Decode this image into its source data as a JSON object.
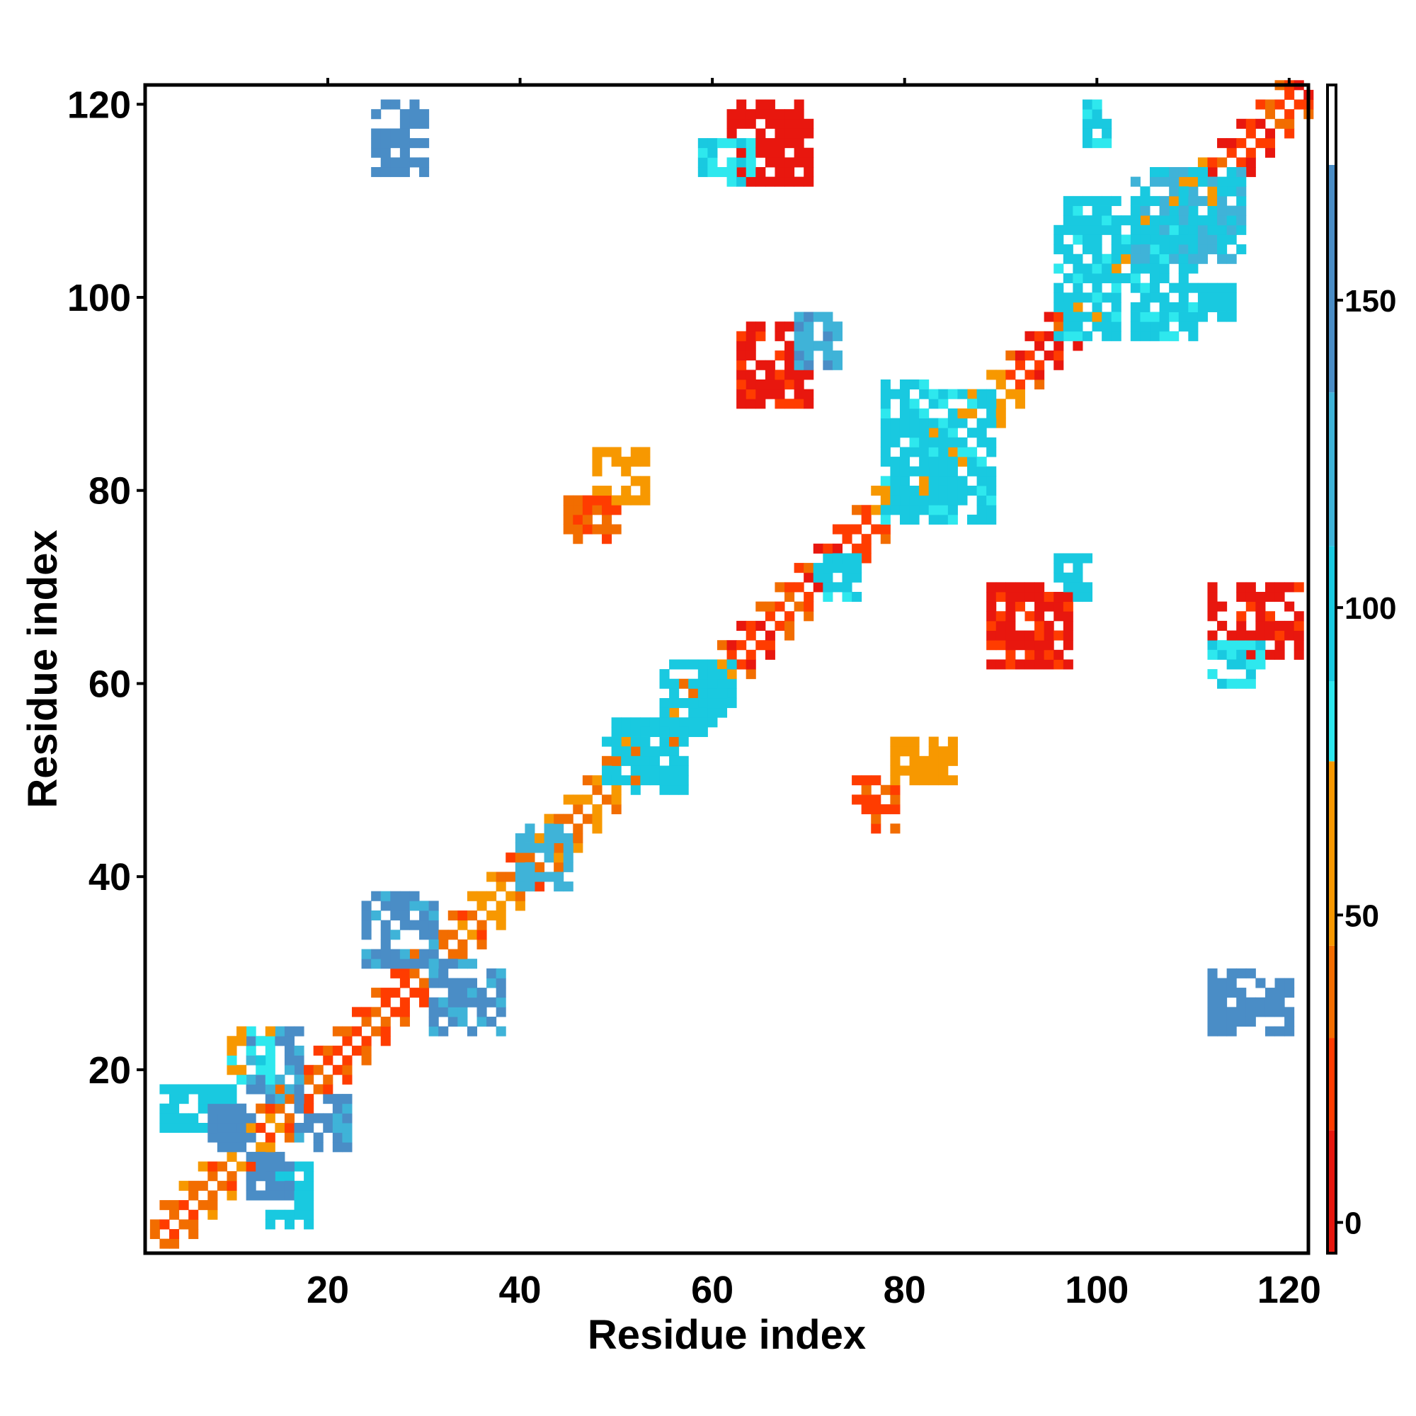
{
  "chart_data": {
    "type": "heatmap",
    "title": "",
    "xlabel": "Residue index",
    "ylabel": "Residue index",
    "xlim": [
      1,
      122
    ],
    "ylim": [
      1,
      122
    ],
    "xticks": [
      20,
      40,
      60,
      80,
      100,
      120
    ],
    "yticks": [
      20,
      40,
      60,
      80,
      100,
      120
    ],
    "colorbar": {
      "range": [
        -5,
        185
      ],
      "ticks": [
        0,
        50,
        100,
        150
      ],
      "bands": [
        {
          "from": -5,
          "to": 15,
          "color": "#e8170e"
        },
        {
          "from": 15,
          "to": 30,
          "color": "#ff3c00"
        },
        {
          "from": 30,
          "to": 45,
          "color": "#f26d00"
        },
        {
          "from": 45,
          "to": 75,
          "color": "#f79800"
        },
        {
          "from": 75,
          "to": 88,
          "color": "#2ee8ee"
        },
        {
          "from": 88,
          "to": 110,
          "color": "#19c9e0"
        },
        {
          "from": 110,
          "to": 135,
          "color": "#3fb3d8"
        },
        {
          "from": 135,
          "to": 172,
          "color": "#4a8dc6"
        },
        {
          "from": 172,
          "to": 185,
          "color": "#ffffff"
        }
      ]
    },
    "grid": false,
    "legend": "right colorbar",
    "contact_map": {
      "n": 122,
      "diagonal_band_width": 3,
      "segments": [
        {
          "x": [
            2,
            12
          ],
          "y": [
            2,
            12
          ],
          "value": 40
        },
        {
          "x": [
            12,
            21
          ],
          "y": [
            12,
            21
          ],
          "value": 35
        },
        {
          "x": [
            21,
            31
          ],
          "y": [
            21,
            31
          ],
          "value": 30
        },
        {
          "x": [
            31,
            44
          ],
          "y": [
            31,
            44
          ],
          "value": 40
        },
        {
          "x": [
            44,
            52
          ],
          "y": [
            44,
            52
          ],
          "value": 45
        },
        {
          "x": [
            52,
            62
          ],
          "y": [
            52,
            62
          ],
          "value": 50
        },
        {
          "x": [
            62,
            77
          ],
          "y": [
            62,
            77
          ],
          "value": 25
        },
        {
          "x": [
            77,
            91
          ],
          "y": [
            77,
            91
          ],
          "value": 55
        },
        {
          "x": [
            91,
            98
          ],
          "y": [
            91,
            98
          ],
          "value": 20
        },
        {
          "x": [
            98,
            112
          ],
          "y": [
            98,
            112
          ],
          "value": 60
        },
        {
          "x": [
            112,
            122
          ],
          "y": [
            112,
            122
          ],
          "value": 20
        }
      ],
      "blobs": [
        {
          "x": [
            3,
            11
          ],
          "y": [
            14,
            18
          ],
          "value": 100
        },
        {
          "x": [
            8,
            12
          ],
          "y": [
            12,
            16
          ],
          "value": 150
        },
        {
          "x": [
            14,
            18
          ],
          "y": [
            4,
            10
          ],
          "value": 100
        },
        {
          "x": [
            12,
            16
          ],
          "y": [
            7,
            11
          ],
          "value": 150
        },
        {
          "x": [
            17,
            22
          ],
          "y": [
            12,
            17
          ],
          "value": 140
        },
        {
          "x": [
            12,
            17
          ],
          "y": [
            17,
            24
          ],
          "value": 140
        },
        {
          "x": [
            24,
            31
          ],
          "y": [
            31,
            38
          ],
          "value": 140
        },
        {
          "x": [
            31,
            38
          ],
          "y": [
            24,
            31
          ],
          "value": 140
        },
        {
          "x": [
            40,
            45
          ],
          "y": [
            39,
            45
          ],
          "value": 120
        },
        {
          "x": [
            49,
            57
          ],
          "y": [
            49,
            56
          ],
          "value": 100
        },
        {
          "x": [
            55,
            62
          ],
          "y": [
            55,
            62
          ],
          "value": 100
        },
        {
          "x": [
            71,
            75
          ],
          "y": [
            69,
            73
          ],
          "value": 95
        },
        {
          "x": [
            78,
            89
          ],
          "y": [
            77,
            91
          ],
          "value": 95
        },
        {
          "x": [
            96,
            110
          ],
          "y": [
            96,
            110
          ],
          "value": 95
        },
        {
          "x": [
            104,
            115
          ],
          "y": [
            104,
            113
          ],
          "value": 110
        },
        {
          "x": [
            25,
            30
          ],
          "y": [
            113,
            120
          ],
          "value": 150
        },
        {
          "x": [
            62,
            70
          ],
          "y": [
            112,
            120
          ],
          "value": 5
        },
        {
          "x": [
            59,
            64
          ],
          "y": [
            112,
            116
          ],
          "value": 90
        },
        {
          "x": [
            63,
            70
          ],
          "y": [
            89,
            97
          ],
          "value": 10
        },
        {
          "x": [
            69,
            73
          ],
          "y": [
            93,
            98
          ],
          "value": 130
        },
        {
          "x": [
            45,
            50
          ],
          "y": [
            75,
            79
          ],
          "value": 30
        },
        {
          "x": [
            48,
            53
          ],
          "y": [
            79,
            84
          ],
          "value": 60
        },
        {
          "x": [
            89,
            97
          ],
          "y": [
            62,
            70
          ],
          "value": 10
        },
        {
          "x": [
            96,
            99
          ],
          "y": [
            69,
            73
          ],
          "value": 100
        },
        {
          "x": [
            112,
            121
          ],
          "y": [
            63,
            70
          ],
          "value": 8
        },
        {
          "x": [
            112,
            117
          ],
          "y": [
            60,
            64
          ],
          "value": 90
        },
        {
          "x": [
            112,
            120
          ],
          "y": [
            24,
            30
          ],
          "value": 150
        },
        {
          "x": [
            75,
            79
          ],
          "y": [
            45,
            50
          ],
          "value": 25
        },
        {
          "x": [
            79,
            85
          ],
          "y": [
            50,
            54
          ],
          "value": 55
        },
        {
          "x": [
            111,
            114
          ],
          "y": [
            98,
            101
          ],
          "value": 100
        },
        {
          "x": [
            99,
            101
          ],
          "y": [
            116,
            120
          ],
          "value": 90
        },
        {
          "x": [
            10,
            14
          ],
          "y": [
            19,
            24
          ],
          "value": 80
        }
      ]
    }
  }
}
